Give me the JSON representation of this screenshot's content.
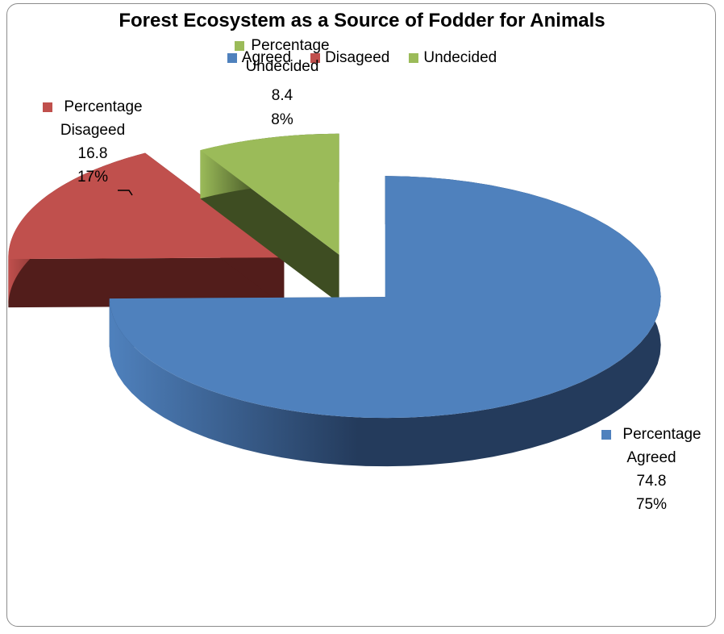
{
  "chart_data": {
    "type": "pie",
    "title": "Forest Ecosystem as a Source of Fodder for Animals",
    "legend_position": "top",
    "categories": [
      "Agreed",
      "Disageed",
      "Undecided"
    ],
    "values": [
      74.8,
      16.8,
      8.4
    ],
    "percent_labels": [
      "75%",
      "17%",
      "8%"
    ],
    "series_labels": [
      "Percentage",
      "Percentage",
      "Percentage"
    ],
    "colors": [
      "#4f81bd",
      "#c0504d",
      "#9bbb59"
    ],
    "side_colors": [
      "#243b5c",
      "#521d1b",
      "#3e4d22"
    ],
    "exploded": true,
    "style": "3d"
  }
}
